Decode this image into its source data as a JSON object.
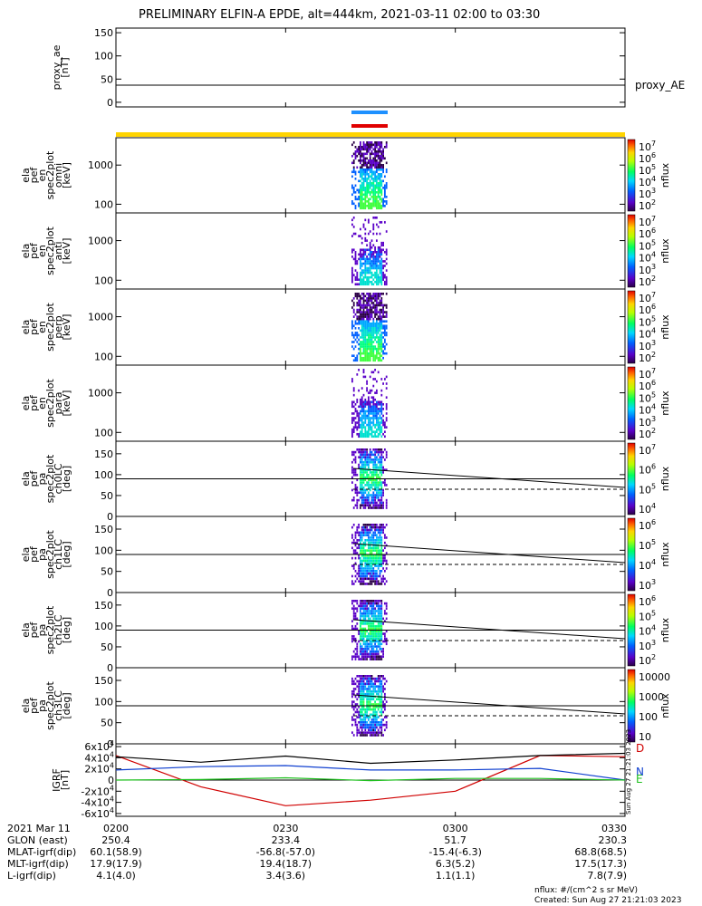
{
  "title": "PRELIMINARY ELFIN-A EPDE, alt=444km, 2021-03-11 02:00 to 03:30",
  "footer": {
    "nflux_units": "nflux: #/(cm^2 s sr MeV)",
    "created": "Created: Sun Aug 27 21:21:03 2023",
    "side_stamp": "Sun Aug 27 21:21:03 2023"
  },
  "colors": {
    "frame": "#000000",
    "yellow_bar": "#ffd400",
    "blue_bar": "#1e90ff",
    "red_bar": "#e00000",
    "D": "#d00000",
    "N": "#1040d0",
    "E": "#20c020"
  },
  "time_axis": {
    "labels": [
      "2021 Mar 11",
      "GLON (east)",
      "MLAT-igrf(dip)",
      "MLT-igrf(dip)",
      "L-igrf(dip)"
    ],
    "ticks": [
      {
        "time": "0200",
        "glon": "250.4",
        "mlat": "60.1(58.9)",
        "mlt": "17.9(17.9)",
        "l": "4.1(4.0)"
      },
      {
        "time": "0230",
        "glon": "233.4",
        "mlat": "-56.8(-57.0)",
        "mlt": "19.4(18.7)",
        "l": "3.4(3.6)"
      },
      {
        "time": "0300",
        "glon": "51.7",
        "mlat": "-15.4(-6.3)",
        "mlt": "6.3(5.2)",
        "l": "1.1(1.1)"
      },
      {
        "time": "0330",
        "glon": "230.3",
        "mlat": "68.8(68.5)",
        "mlt": "17.5(17.3)",
        "l": "7.8(7.9)"
      }
    ]
  },
  "chart_data": [
    {
      "type": "line",
      "panel": "proxy_ae",
      "ylabel": [
        "proxy_ae",
        "[nT]"
      ],
      "ylim": [
        -10,
        160
      ],
      "yticks": [
        "150",
        "100",
        "50",
        "0"
      ],
      "series": [
        {
          "name": "proxy_AE",
          "x": [
            "02:00",
            "03:30"
          ],
          "values": [
            37,
            37
          ]
        }
      ]
    },
    {
      "type": "heatmap",
      "panel": "en_omni",
      "ylabel": [
        "ela",
        "pef",
        "en",
        "spec2plot",
        "omni",
        "[keV]"
      ],
      "yscale": "log",
      "yticks": [
        "1000",
        "100"
      ],
      "zlabel": "nflux",
      "zticks": [
        "10^7",
        "10^6",
        "10^5",
        "10^4",
        "10^3",
        "10^2"
      ]
    },
    {
      "type": "heatmap",
      "panel": "en_anti",
      "ylabel": [
        "ela",
        "pef",
        "en",
        "spec2plot",
        "anti",
        "[keV]"
      ],
      "yscale": "log",
      "yticks": [
        "1000",
        "100"
      ],
      "zlabel": "nflux",
      "zticks": [
        "10^7",
        "10^6",
        "10^5",
        "10^4",
        "10^3",
        "10^2"
      ]
    },
    {
      "type": "heatmap",
      "panel": "en_perp",
      "ylabel": [
        "ela",
        "pef",
        "en",
        "spec2plot",
        "perp",
        "[keV]"
      ],
      "yscale": "log",
      "yticks": [
        "1000",
        "100"
      ],
      "zlabel": "nflux",
      "zticks": [
        "10^7",
        "10^6",
        "10^5",
        "10^4",
        "10^3",
        "10^2"
      ]
    },
    {
      "type": "heatmap",
      "panel": "en_para",
      "ylabel": [
        "ela",
        "pef",
        "en",
        "spec2plot",
        "para",
        "[keV]"
      ],
      "yscale": "log",
      "yticks": [
        "1000",
        "100"
      ],
      "zlabel": "nflux",
      "zticks": [
        "10^7",
        "10^6",
        "10^5",
        "10^4",
        "10^3",
        "10^2"
      ]
    },
    {
      "type": "heatmap",
      "panel": "pa_ch0LC",
      "ylabel": [
        "ela",
        "pef",
        "pa",
        "spec2plot",
        "ch0LC",
        "[deg]"
      ],
      "ylim": [
        0,
        180
      ],
      "yticks": [
        "150",
        "100",
        "50",
        "0"
      ],
      "zlabel": "nflux",
      "zticks": [
        "10^7",
        "10^6",
        "10^5",
        "10^4"
      ]
    },
    {
      "type": "heatmap",
      "panel": "pa_ch1LC",
      "ylabel": [
        "ela",
        "pef",
        "pa",
        "spec2plot",
        "ch1LC",
        "[deg]"
      ],
      "ylim": [
        0,
        180
      ],
      "yticks": [
        "150",
        "100",
        "50",
        "0"
      ],
      "zlabel": "nflux",
      "zticks": [
        "10^6",
        "10^5",
        "10^4",
        "10^3"
      ]
    },
    {
      "type": "heatmap",
      "panel": "pa_ch2LC",
      "ylabel": [
        "ela",
        "pef",
        "pa",
        "spec2plot",
        "ch2LC",
        "[deg]"
      ],
      "ylim": [
        0,
        180
      ],
      "yticks": [
        "150",
        "100",
        "50",
        "0"
      ],
      "zlabel": "nflux",
      "zticks": [
        "10^6",
        "10^5",
        "10^4",
        "10^3",
        "10^2"
      ]
    },
    {
      "type": "heatmap",
      "panel": "pa_ch3LC",
      "ylabel": [
        "ela",
        "pef",
        "pa",
        "spec2plot",
        "ch3LC",
        "[deg]"
      ],
      "ylim": [
        0,
        180
      ],
      "yticks": [
        "150",
        "100",
        "50",
        "0"
      ],
      "zlabel": "nflux",
      "zticks": [
        "10000",
        "1000",
        "100",
        "10"
      ]
    },
    {
      "type": "line",
      "panel": "igrf",
      "ylabel": [
        "IGRF",
        "[nT]"
      ],
      "ylim": [
        -65000,
        65000
      ],
      "yticks": [
        "6x10^4",
        "4x10^4",
        "2x10^4",
        "0",
        "-2x10^4",
        "-4x10^4",
        "-6x10^4"
      ],
      "x": [
        "02:00",
        "02:15",
        "02:30",
        "02:45",
        "03:00",
        "03:15",
        "03:30"
      ],
      "series": [
        {
          "name": "D",
          "values": [
            44000,
            -12000,
            -46000,
            -36000,
            -20000,
            44000,
            42000
          ]
        },
        {
          "name": "N",
          "values": [
            18000,
            24000,
            26000,
            18000,
            18000,
            21000,
            0
          ]
        },
        {
          "name": "E",
          "values": [
            0,
            1000,
            4000,
            -1000,
            3000,
            3000,
            0
          ]
        },
        {
          "name": "",
          "values": [
            42000,
            32000,
            43000,
            30000,
            36000,
            44000,
            48000
          ]
        }
      ]
    }
  ]
}
